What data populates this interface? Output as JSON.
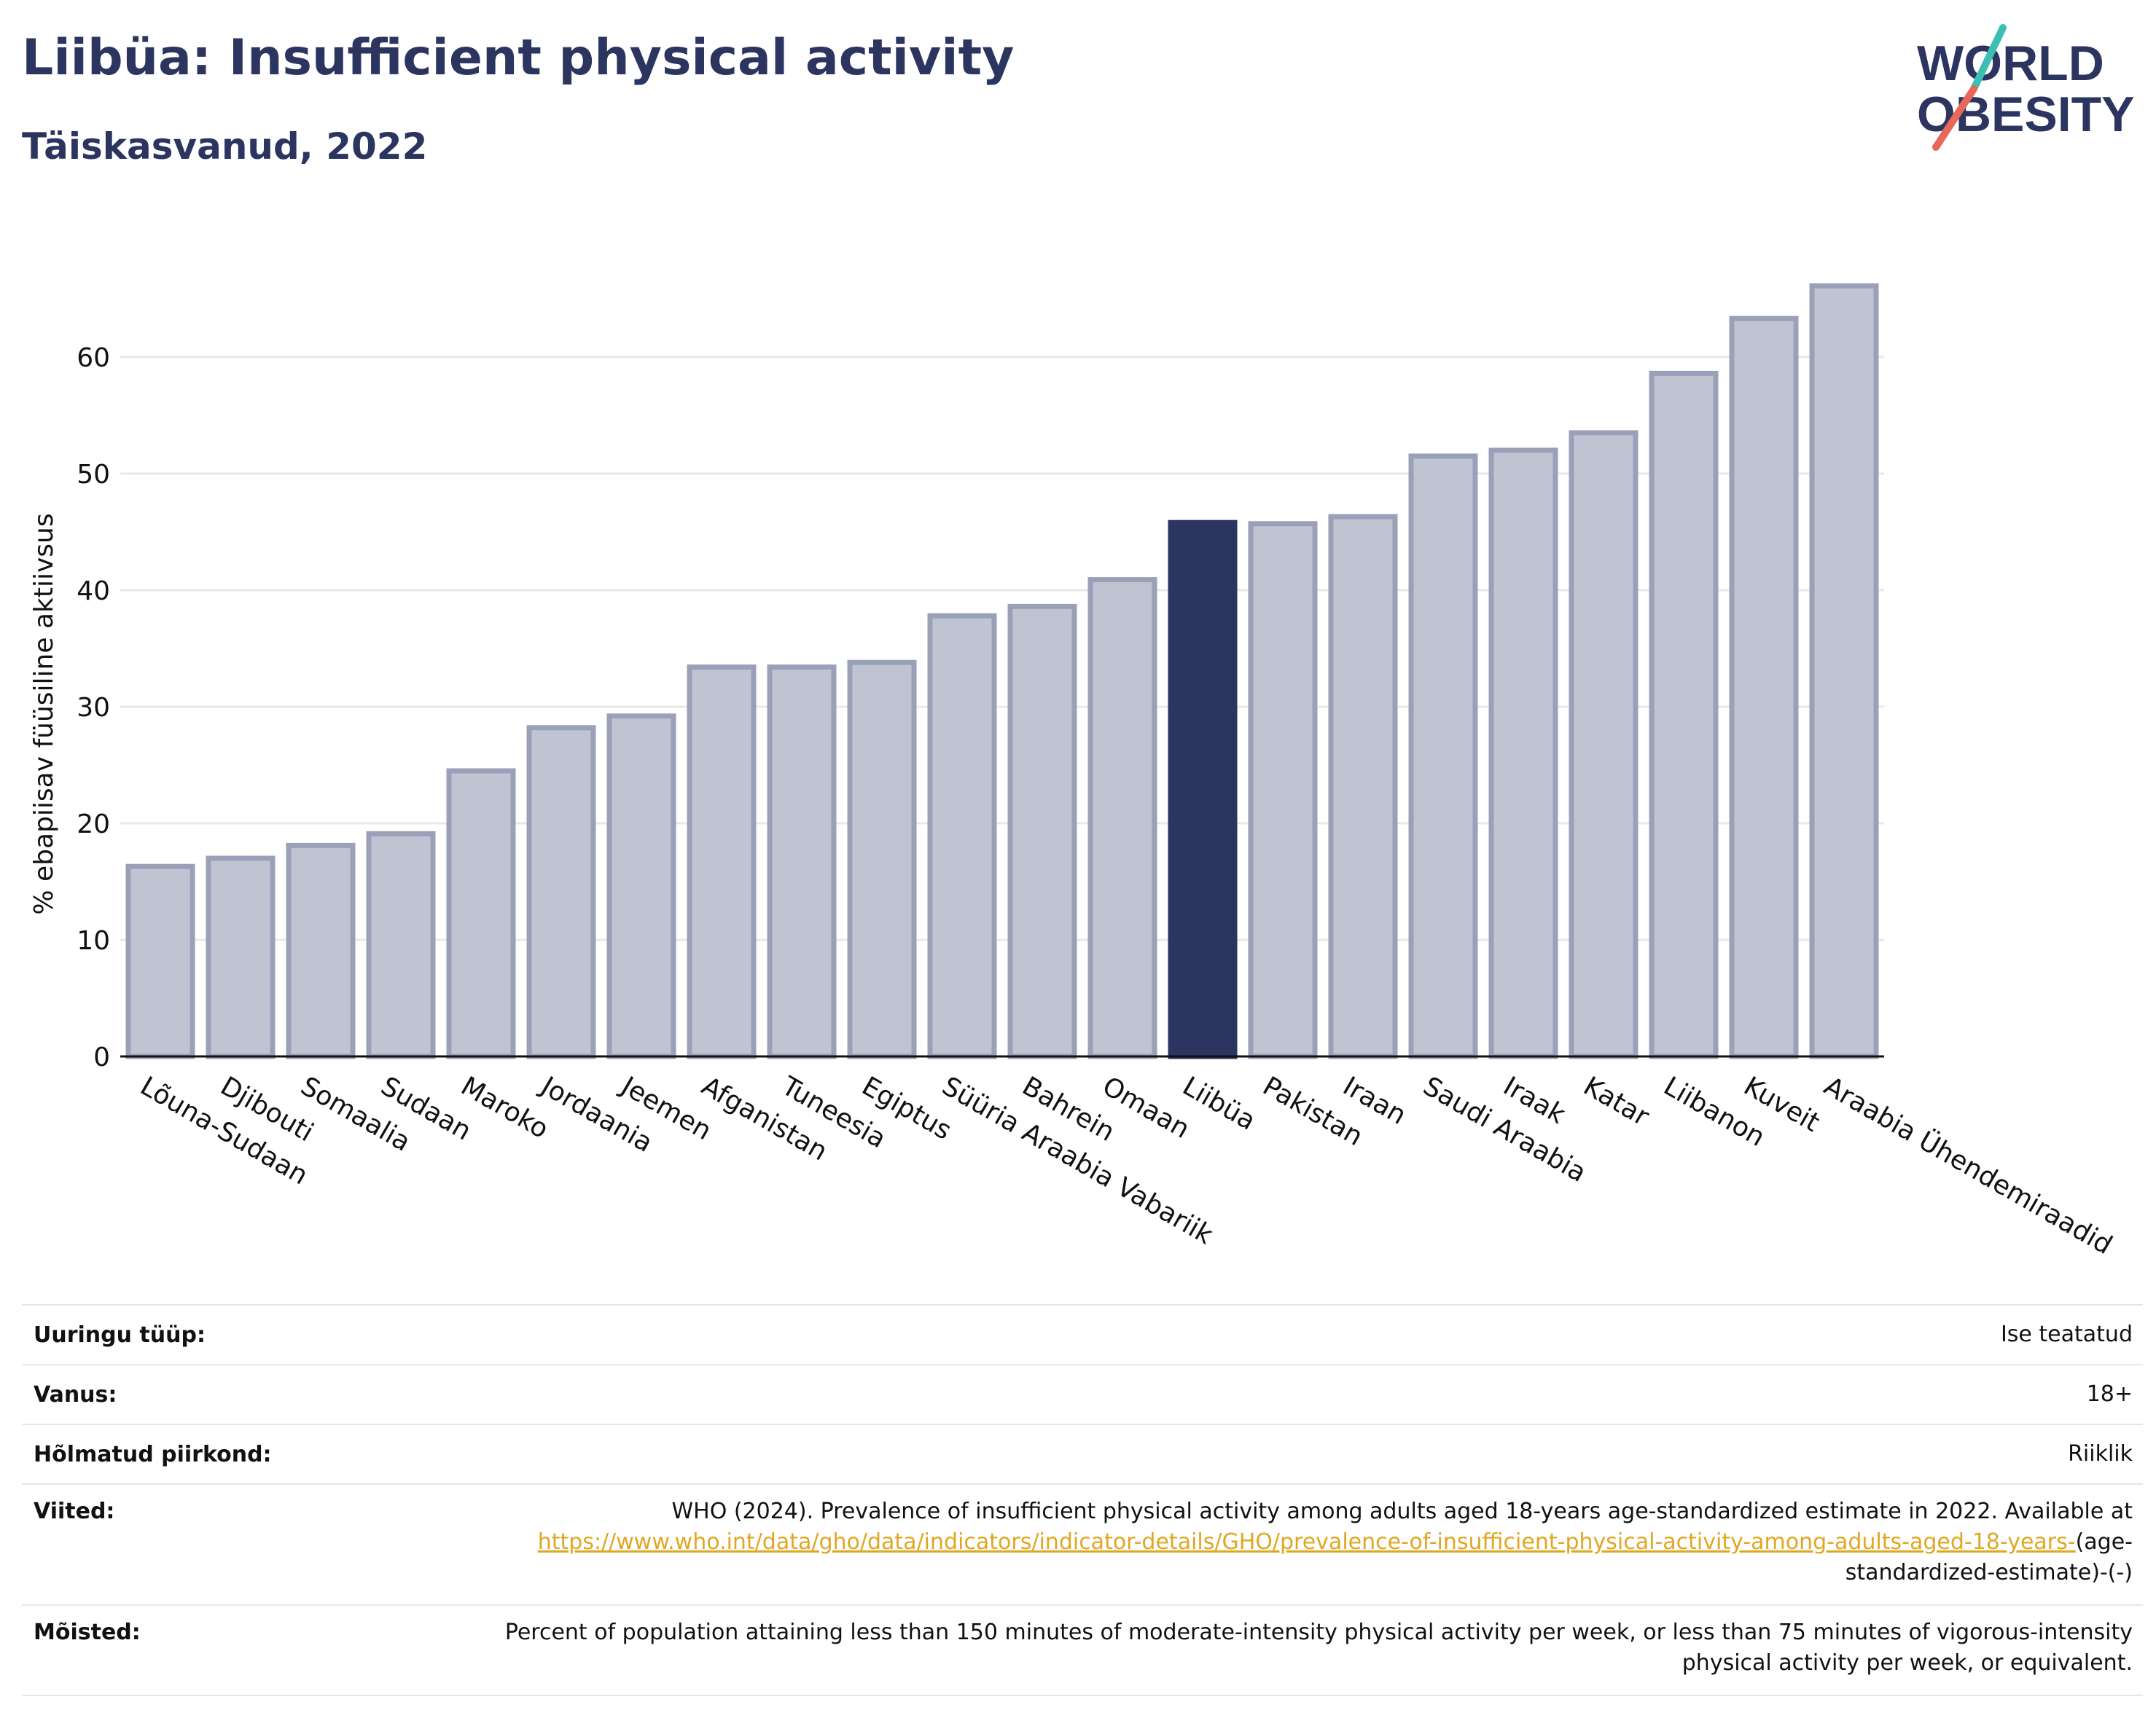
{
  "header": {
    "title": "Liibüa: Insufficient physical activity",
    "subtitle": "Täiskasvanud, 2022",
    "logo_line1": "WORLD",
    "logo_line2": "OBESITY"
  },
  "chart_data": {
    "type": "bar",
    "title": "Liibüa: Insufficient physical activity",
    "subtitle": "Täiskasvanud, 2022",
    "ylabel": "% ebapiisav füüsiline aktiivsus",
    "xlabel": "",
    "ylim": [
      0,
      70
    ],
    "yticks": [
      0,
      10,
      20,
      30,
      40,
      50,
      60
    ],
    "grid": true,
    "highlight": "Liibüa",
    "colors": {
      "bar": "#c0c3d1",
      "bar_border": "#9aa0b8",
      "highlight": "#2b3560",
      "grid": "#e8e8e8",
      "axis": "#111111"
    },
    "categories": [
      "Lõuna-Sudaan",
      "Djibouti",
      "Somaalia",
      "Sudaan",
      "Maroko",
      "Jordaania",
      "Jeemen",
      "Afganistan",
      "Tuneesia",
      "Egiptus",
      "Süüria Araabia Vabariik",
      "Bahrein",
      "Omaan",
      "Liibüa",
      "Pakistan",
      "Iraan",
      "Saudi Araabia",
      "Iraak",
      "Katar",
      "Liibanon",
      "Kuveit",
      "Araabia Ühendemiraadid"
    ],
    "values": [
      16.3,
      17.0,
      18.1,
      19.1,
      24.5,
      28.2,
      29.2,
      33.4,
      33.4,
      33.8,
      37.8,
      38.6,
      40.9,
      45.8,
      45.7,
      46.3,
      51.5,
      52.0,
      53.5,
      58.6,
      63.3,
      66.1
    ]
  },
  "meta": {
    "survey_type_label": "Uuringu tüüp:",
    "survey_type_value": "Ise teatatud",
    "age_label": "Vanus:",
    "age_value": "18+",
    "region_label": "Hõlmatud piirkond:",
    "region_value": "Riiklik",
    "references_label": "Viited:",
    "references_text": "WHO (2024). Prevalence of insufficient physical activity among adults aged 18-years age-standardized estimate in 2022. Available at",
    "references_link": "https://www.who.int/data/gho/data/indicators/indicator-details/GHO/prevalence-of-insufficient-physical-activity-among-adults-aged-18-years-",
    "references_suffix": "(age-standardized-estimate)-(-)",
    "definitions_label": "Mõisted:",
    "definitions_text": "Percent of population attaining less than 150 minutes of moderate-intensity physical activity per week, or less than 75 minutes of vigorous-intensity physical activity per week, or equivalent."
  }
}
